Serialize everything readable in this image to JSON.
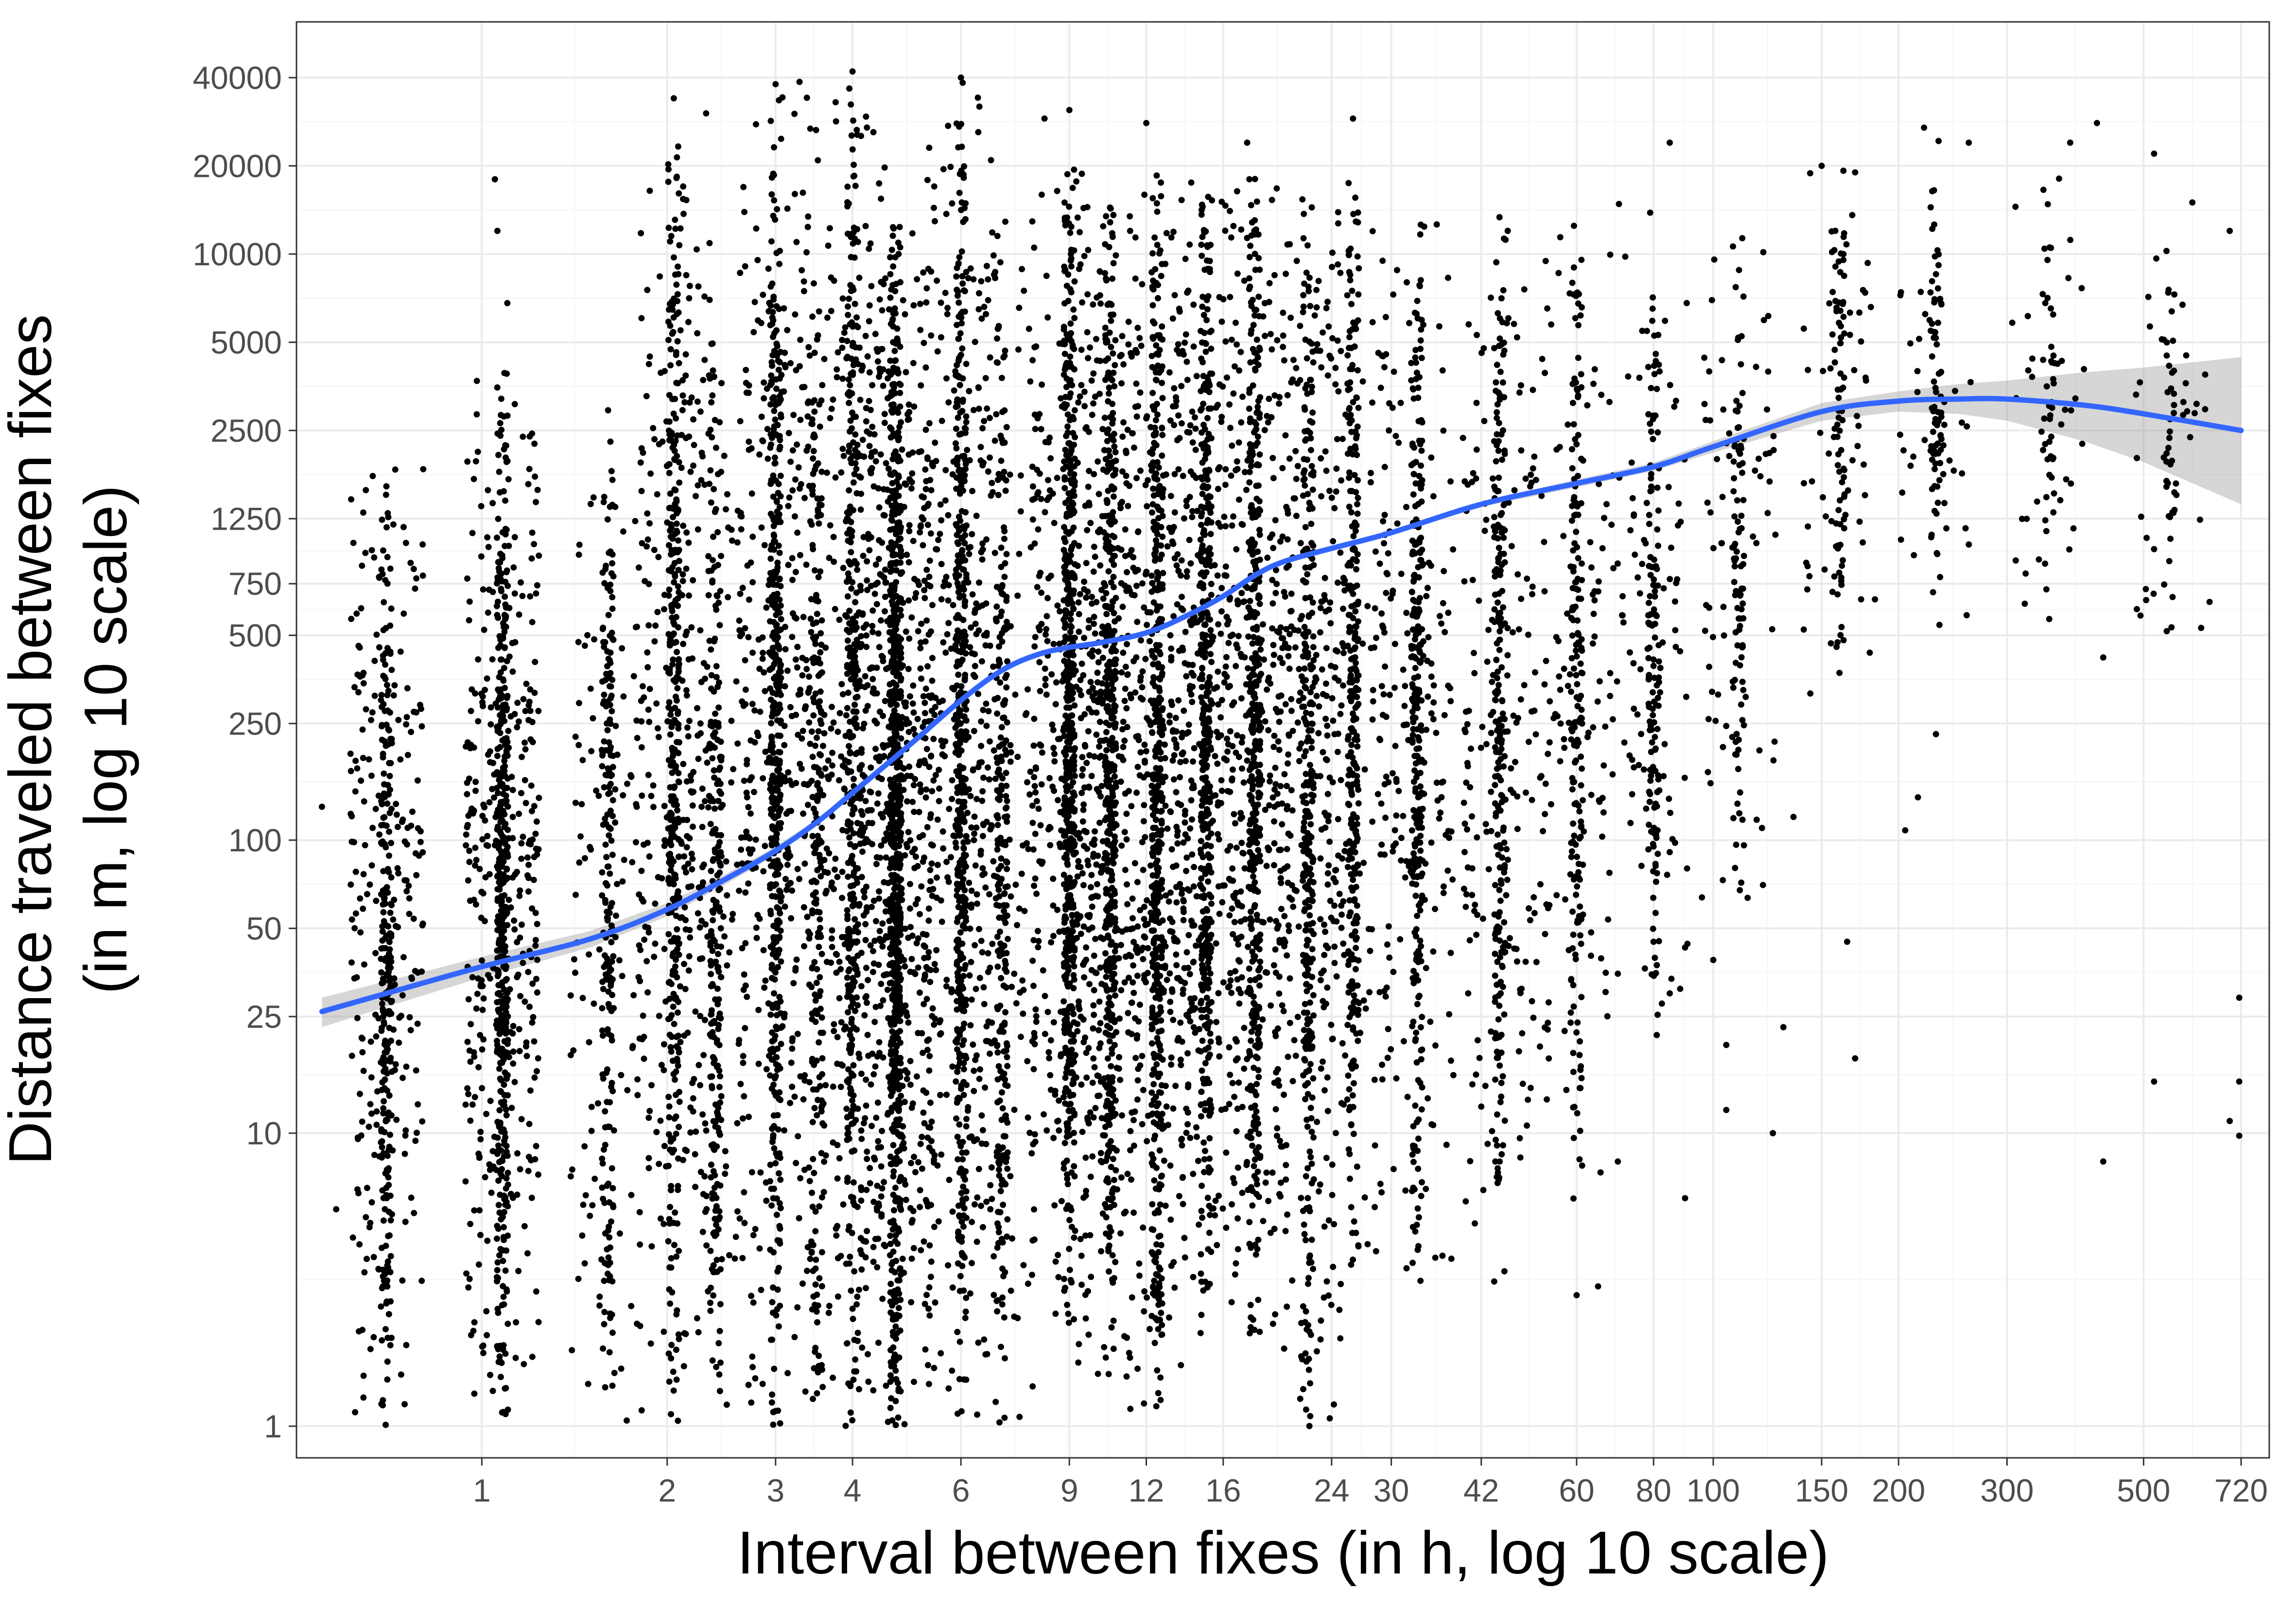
{
  "chart_data": {
    "type": "scatter",
    "xlabel": "Interval between fixes (in h, log 10 scale)",
    "ylabel_lines": [
      "Distance traveled between fixes",
      "(in m, log 10 scale)"
    ],
    "x_scale": "log10",
    "y_scale": "log10",
    "xlim": [
      0.5,
      800
    ],
    "ylim": [
      0.78,
      62000
    ],
    "x_ticks": [
      1,
      2,
      3,
      4,
      6,
      9,
      12,
      16,
      24,
      30,
      42,
      60,
      80,
      100,
      150,
      200,
      300,
      500,
      720
    ],
    "x_tick_labels": [
      "1",
      "2",
      "3",
      "4",
      "6",
      "9",
      "12",
      "16",
      "24",
      "30",
      "42",
      "60",
      "80",
      "100",
      "150",
      "200",
      "300",
      "500",
      "720"
    ],
    "y_ticks": [
      1,
      10,
      25,
      50,
      100,
      250,
      500,
      750,
      1250,
      2500,
      5000,
      10000,
      20000,
      40000
    ],
    "y_tick_labels": [
      "1",
      "10",
      "25",
      "50",
      "100",
      "250",
      "500",
      "750",
      "1250",
      "2500",
      "5000",
      "10000",
      "20000",
      "40000"
    ],
    "grid": true,
    "theme": "black-and-white panel with light grey grid",
    "points_description": "tens of thousands of individual fixes, dense vertical bands at fixed sampling intervals",
    "interval_bands": [
      {
        "x": 0.7,
        "ymin": 1,
        "ymax": 2000,
        "n": 480
      },
      {
        "x": 1.08,
        "ymin": 1,
        "ymax": 4000,
        "n": 780
      },
      {
        "x": 1.6,
        "ymin": 1,
        "ymax": 3000,
        "n": 320
      },
      {
        "x": 2.05,
        "ymin": 1,
        "ymax": 35000,
        "n": 600
      },
      {
        "x": 2.4,
        "ymin": 1,
        "ymax": 6000,
        "n": 380
      },
      {
        "x": 3.0,
        "ymin": 1,
        "ymax": 40000,
        "n": 720
      },
      {
        "x": 3.5,
        "ymin": 1,
        "ymax": 10000,
        "n": 320
      },
      {
        "x": 4.0,
        "ymin": 1,
        "ymax": 45000,
        "n": 600
      },
      {
        "x": 4.7,
        "ymin": 1,
        "ymax": 13000,
        "n": 1300
      },
      {
        "x": 6.0,
        "ymin": 1,
        "ymax": 40000,
        "n": 820
      },
      {
        "x": 7.0,
        "ymin": 1,
        "ymax": 15000,
        "n": 400
      },
      {
        "x": 9.0,
        "ymin": 2,
        "ymax": 20000,
        "n": 920
      },
      {
        "x": 10.5,
        "ymin": 1.5,
        "ymax": 15000,
        "n": 720
      },
      {
        "x": 12.5,
        "ymin": 1,
        "ymax": 20000,
        "n": 760
      },
      {
        "x": 15.0,
        "ymin": 2,
        "ymax": 20000,
        "n": 720
      },
      {
        "x": 18.0,
        "ymin": 2,
        "ymax": 20000,
        "n": 740
      },
      {
        "x": 22.0,
        "ymin": 1,
        "ymax": 20000,
        "n": 560
      },
      {
        "x": 26.0,
        "ymin": 3,
        "ymax": 20000,
        "n": 440
      },
      {
        "x": 33.0,
        "ymin": 3,
        "ymax": 15000,
        "n": 440
      },
      {
        "x": 45.0,
        "ymin": 3,
        "ymax": 15000,
        "n": 400
      },
      {
        "x": 60.0,
        "ymin": 5,
        "ymax": 15000,
        "n": 300
      },
      {
        "x": 80.0,
        "ymin": 20,
        "ymax": 15000,
        "n": 220
      },
      {
        "x": 110.0,
        "ymin": 50,
        "ymax": 12000,
        "n": 160
      },
      {
        "x": 160.0,
        "ymin": 300,
        "ymax": 20000,
        "n": 130
      },
      {
        "x": 230.0,
        "ymin": 500,
        "ymax": 25000,
        "n": 110
      },
      {
        "x": 350.0,
        "ymin": 500,
        "ymax": 20000,
        "n": 75
      },
      {
        "x": 550.0,
        "ymin": 500,
        "ymax": 15000,
        "n": 70
      }
    ],
    "outlier_points": [
      {
        "x": 0.55,
        "y": 130
      },
      {
        "x": 0.58,
        "y": 5.5
      },
      {
        "x": 1.05,
        "y": 18000
      },
      {
        "x": 1.06,
        "y": 12000
      },
      {
        "x": 1.1,
        "y": 6800
      },
      {
        "x": 2.05,
        "y": 34000
      },
      {
        "x": 3.0,
        "y": 38000
      },
      {
        "x": 4.0,
        "y": 42000
      },
      {
        "x": 6.0,
        "y": 40000
      },
      {
        "x": 8.2,
        "y": 29000
      },
      {
        "x": 9.0,
        "y": 31000
      },
      {
        "x": 12.0,
        "y": 28000
      },
      {
        "x": 17.5,
        "y": 24000
      },
      {
        "x": 26.0,
        "y": 29000
      },
      {
        "x": 85.0,
        "y": 24000
      },
      {
        "x": 150.0,
        "y": 20000
      },
      {
        "x": 170.0,
        "y": 19000
      },
      {
        "x": 220.0,
        "y": 27000
      },
      {
        "x": 260.0,
        "y": 24000
      },
      {
        "x": 380.0,
        "y": 24000
      },
      {
        "x": 420.0,
        "y": 28000
      },
      {
        "x": 520.0,
        "y": 22000
      },
      {
        "x": 600.0,
        "y": 15000
      },
      {
        "x": 690.0,
        "y": 12000
      },
      {
        "x": 110.0,
        "y": 220
      },
      {
        "x": 120.0,
        "y": 110
      },
      {
        "x": 135.0,
        "y": 120
      },
      {
        "x": 105.0,
        "y": 20
      },
      {
        "x": 105.0,
        "y": 12
      },
      {
        "x": 130.0,
        "y": 23
      },
      {
        "x": 125.0,
        "y": 10
      },
      {
        "x": 70.0,
        "y": 35
      },
      {
        "x": 80.0,
        "y": 45
      },
      {
        "x": 90.0,
        "y": 43
      },
      {
        "x": 100.0,
        "y": 39
      },
      {
        "x": 85.0,
        "y": 30
      },
      {
        "x": 60.0,
        "y": 2.8
      },
      {
        "x": 65.0,
        "y": 3.0
      },
      {
        "x": 70.0,
        "y": 8
      },
      {
        "x": 90.0,
        "y": 6
      },
      {
        "x": 165.0,
        "y": 45
      },
      {
        "x": 170.0,
        "y": 18
      },
      {
        "x": 205.0,
        "y": 108
      },
      {
        "x": 215.0,
        "y": 140
      },
      {
        "x": 230.0,
        "y": 230
      },
      {
        "x": 310.0,
        "y": 900
      },
      {
        "x": 430.0,
        "y": 420
      },
      {
        "x": 430.0,
        "y": 8
      },
      {
        "x": 520.0,
        "y": 15
      },
      {
        "x": 620.0,
        "y": 530
      },
      {
        "x": 640.0,
        "y": 650
      },
      {
        "x": 690.0,
        "y": 11
      },
      {
        "x": 715.0,
        "y": 29
      },
      {
        "x": 715.0,
        "y": 15
      },
      {
        "x": 715.0,
        "y": 9.8
      },
      {
        "x": 40.0,
        "y": 30
      },
      {
        "x": 50.0,
        "y": 13
      },
      {
        "x": 45.0,
        "y": 8
      }
    ],
    "series": [
      {
        "name": "",
        "type": "smooth",
        "color": "#3366FF",
        "x": [
          0.55,
          0.7,
          1.0,
          1.5,
          2.0,
          2.5,
          3.0,
          3.5,
          4.0,
          5.0,
          6.0,
          7.0,
          8.0,
          9.0,
          10.0,
          12.0,
          14.0,
          16.0,
          18.0,
          20.0,
          24.0,
          30.0,
          42.0,
          60.0,
          80.0,
          100.0,
          150.0,
          200.0,
          250.0,
          300.0,
          400.0,
          500.0,
          720.0
        ],
        "y": [
          26,
          30,
          37,
          46,
          58,
          74,
          92,
          115,
          145,
          215,
          300,
          380,
          430,
          455,
          470,
          510,
          585,
          680,
          800,
          890,
          990,
          1120,
          1400,
          1650,
          1880,
          2200,
          2900,
          3150,
          3200,
          3200,
          3050,
          2850,
          2500
        ],
        "band_low": [
          23,
          27,
          34,
          43,
          55,
          71,
          89,
          112,
          142,
          210,
          295,
          375,
          425,
          450,
          465,
          505,
          578,
          670,
          790,
          880,
          975,
          1100,
          1370,
          1600,
          1820,
          2100,
          2700,
          2900,
          2850,
          2700,
          2300,
          1950,
          1400
        ],
        "band_high": [
          29,
          33,
          40,
          49,
          61,
          77,
          95,
          118,
          148,
          220,
          305,
          385,
          435,
          460,
          475,
          515,
          592,
          690,
          810,
          900,
          1005,
          1140,
          1430,
          1700,
          1940,
          2300,
          3100,
          3400,
          3600,
          3700,
          3950,
          4100,
          4450
        ]
      }
    ]
  },
  "styles": {
    "point_color": "#000000",
    "smooth_color": "#3366FF",
    "ribbon_color": "#999999",
    "grid_major": "#ebebeb",
    "grid_minor": "#f5f5f5",
    "panel_border": "#333333",
    "tick_color": "#333333"
  }
}
